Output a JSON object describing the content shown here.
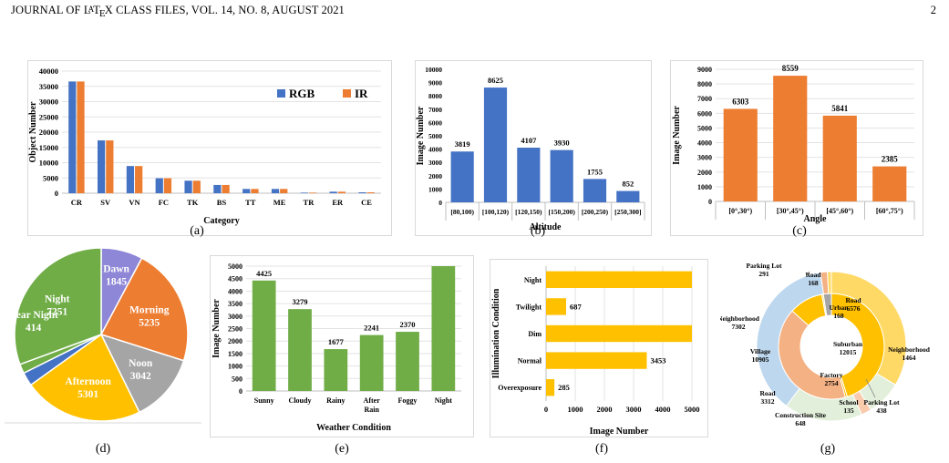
{
  "header": {
    "left_prefix": "JOURNAL OF ",
    "latex_L": "L",
    "latex_A": "A",
    "latex_T": "T",
    "latex_E": "E",
    "latex_X": "X",
    "left_suffix": " CLASS FILES, VOL. 14, NO. 8, AUGUST 2021",
    "page": "2"
  },
  "captions": [
    "(a)",
    "(b)",
    "(c)",
    "(d)",
    "(e)",
    "(f)",
    "(g)"
  ],
  "chart_data": [
    {
      "id": "a",
      "type": "bar",
      "categories": [
        "CR",
        "SV",
        "VN",
        "FC",
        "TK",
        "BS",
        "TT",
        "ME",
        "TR",
        "ER",
        "CE"
      ],
      "series": [
        {
          "name": "RGB",
          "color": "#4472c4",
          "values": [
            36600,
            17300,
            8900,
            4900,
            4100,
            2700,
            1400,
            1400,
            200,
            500,
            300
          ]
        },
        {
          "name": "IR",
          "color": "#ed7d31",
          "values": [
            36600,
            17300,
            8900,
            4900,
            4100,
            2700,
            1400,
            1400,
            200,
            500,
            300
          ]
        }
      ],
      "ylim": [
        0,
        40000
      ],
      "yticks": [
        "0",
        "5000",
        "10000",
        "15000",
        "20000",
        "25000",
        "30000",
        "35000",
        "40000"
      ],
      "xlabel": "Category",
      "ylabel": "Object Number",
      "legend_position": "top-right",
      "grid": true
    },
    {
      "id": "b",
      "type": "bar",
      "categories": [
        "[80,100)",
        "[100,120)",
        "[120,150)",
        "[150,200)",
        "[200,250)",
        "[250,300]"
      ],
      "values": [
        3819,
        8625,
        4107,
        3930,
        1755,
        852
      ],
      "color": "#4472c4",
      "ylim": [
        0,
        10000
      ],
      "yticks": [
        "0",
        "1000",
        "2000",
        "3000",
        "4000",
        "5000",
        "6000",
        "7000",
        "8000",
        "9000",
        "10000"
      ],
      "xlabel": "Altitude",
      "ylabel": "Image Number",
      "grid": false
    },
    {
      "id": "c",
      "type": "bar",
      "categories": [
        "[0°,30°)",
        "[30°,45°)",
        "[45°,60°)",
        "[60°,75°)"
      ],
      "values": [
        6303,
        8559,
        5841,
        2385
      ],
      "color": "#ed7d31",
      "ylim": [
        0,
        9000
      ],
      "yticks": [
        "0",
        "1000",
        "2000",
        "3000",
        "4000",
        "5000",
        "6000",
        "7000",
        "8000",
        "9000"
      ],
      "xlabel": "Angle",
      "ylabel": "Image Number",
      "grid": true
    },
    {
      "id": "d",
      "type": "pie",
      "slices": [
        {
          "name": "Dawn",
          "value": 1845,
          "label": "1845",
          "color": "#8e86d6"
        },
        {
          "name": "Morning",
          "value": 5235,
          "label": "5235",
          "color": "#ed7d31"
        },
        {
          "name": "Noon",
          "value": 3042,
          "label": "3042",
          "color": "#a5a5a5"
        },
        {
          "name": "Afternoon",
          "value": 5301,
          "label": "5301",
          "color": "#ffc000"
        },
        {
          "name": "",
          "value": 600,
          "label": "",
          "color": "#4472c4"
        },
        {
          "name": "Near Night",
          "value": 414,
          "label": "414",
          "color": "#70ad47"
        },
        {
          "name": "Night",
          "value": 7251,
          "label": "7251",
          "color": "#70ad47"
        }
      ]
    },
    {
      "id": "e",
      "type": "bar",
      "categories": [
        "Sunny",
        "Cloudy",
        "Rainy",
        "After Rain",
        "Foggy",
        "Night"
      ],
      "values": [
        4425,
        3279,
        1677,
        2241,
        2370,
        5000
      ],
      "value_labels": [
        "4425",
        "3279",
        "1677",
        "2241",
        "2370",
        ""
      ],
      "color": "#70ad47",
      "ylim": [
        0,
        5000
      ],
      "yticks": [
        "0",
        "500",
        "1000",
        "1500",
        "2000",
        "2500",
        "3000",
        "3500",
        "4000",
        "4500",
        "5000"
      ],
      "xlabel": "Weather Condition",
      "ylabel": "Image Number",
      "grid": true
    },
    {
      "id": "f",
      "type": "bar",
      "orientation": "horizontal",
      "categories": [
        "Overexposure",
        "Normal",
        "Dim",
        "Twilight",
        "Night"
      ],
      "values": [
        285,
        3453,
        5000,
        687,
        5000
      ],
      "value_labels": [
        "285",
        "3453",
        "",
        "687",
        ""
      ],
      "color": "#ffc000",
      "xlim": [
        0,
        5000
      ],
      "xticks": [
        "0",
        "1000",
        "2000",
        "3000",
        "4000",
        "5000"
      ],
      "xlabel": "Image Number",
      "ylabel": "Illumination Condition",
      "grid": true
    },
    {
      "id": "g",
      "type": "pie",
      "subtype": "sunburst",
      "inner": [
        {
          "name": "Suburban",
          "value": 12015,
          "color": "#ffc000"
        },
        {
          "name": "Urban",
          "value": 168,
          "color": "#ffc000"
        },
        {
          "name": "Village",
          "value": 10905,
          "color": "#f4b183"
        },
        {
          "name": "Factory",
          "value": 2754,
          "color": "#ffc000"
        },
        {
          "name": "School",
          "value": 135,
          "color": "#ffd966"
        },
        {
          "name": "Construction Site",
          "value": 648,
          "color": "#a5a5a5"
        }
      ],
      "outer": [
        {
          "name": "Road",
          "value": 6576,
          "color": "#ffd966"
        },
        {
          "name": "Neighborhood",
          "value": 1464,
          "color": "#e2efda"
        },
        {
          "name": "Parking Lot",
          "value": 438,
          "color": "#f8cbad"
        },
        {
          "name": "Road",
          "value": 3312,
          "color": "#e2efda"
        },
        {
          "name": "Neighborhood",
          "value": 7302,
          "color": "#bdd7ee"
        },
        {
          "name": "Parking Lot",
          "value": 291,
          "color": "#f4b183"
        },
        {
          "name": "Road",
          "value": 168,
          "color": "#ffd966"
        }
      ],
      "labels": [
        {
          "text": "Parking Lot",
          "value": "291"
        },
        {
          "text": "Road",
          "value": "168"
        },
        {
          "text": "Road",
          "value": "6576"
        },
        {
          "text": "Urban",
          "value": "168"
        },
        {
          "text": "Neighborhood",
          "value": "7302"
        },
        {
          "text": "Suburban",
          "value": "12015"
        },
        {
          "text": "Neighborhood",
          "value": "1464"
        },
        {
          "text": "Village",
          "value": "10905"
        },
        {
          "text": "Factory",
          "value": "2754"
        },
        {
          "text": "School",
          "value": "135"
        },
        {
          "text": "Parking Lot",
          "value": "438"
        },
        {
          "text": "Road",
          "value": "3312"
        },
        {
          "text": "Construction Site",
          "value": "648"
        }
      ]
    }
  ]
}
